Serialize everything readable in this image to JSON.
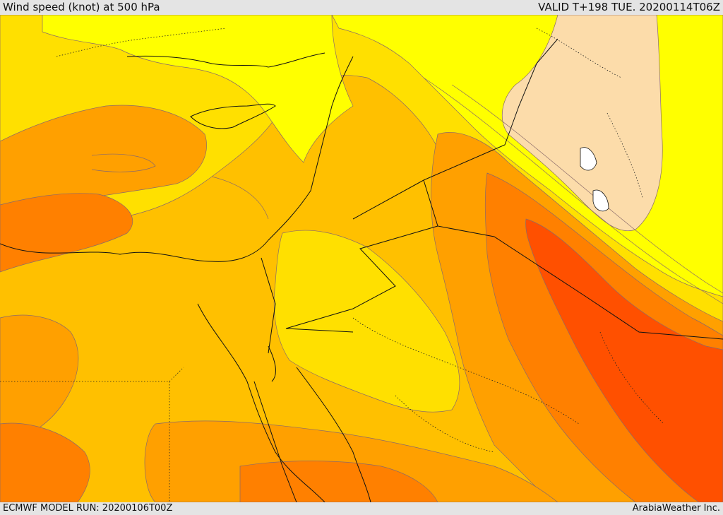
{
  "header": {
    "title": "Wind speed (knot) at 500 hPa",
    "valid": "VALID T+198 TUE. 20200114T06Z"
  },
  "footer": {
    "run": "ECMWF MODEL RUN: 20200106T00Z",
    "credit": "ArabiaWeather Inc."
  },
  "colors": {
    "pale_peach": "#fcdcaa",
    "yellow": "#ffff00",
    "gold": "#ffe000",
    "amber": "#ffc000",
    "orange": "#ffa000",
    "dark_orange": "#ff8000",
    "red_orange": "#ff5000",
    "border": "#000000"
  }
}
